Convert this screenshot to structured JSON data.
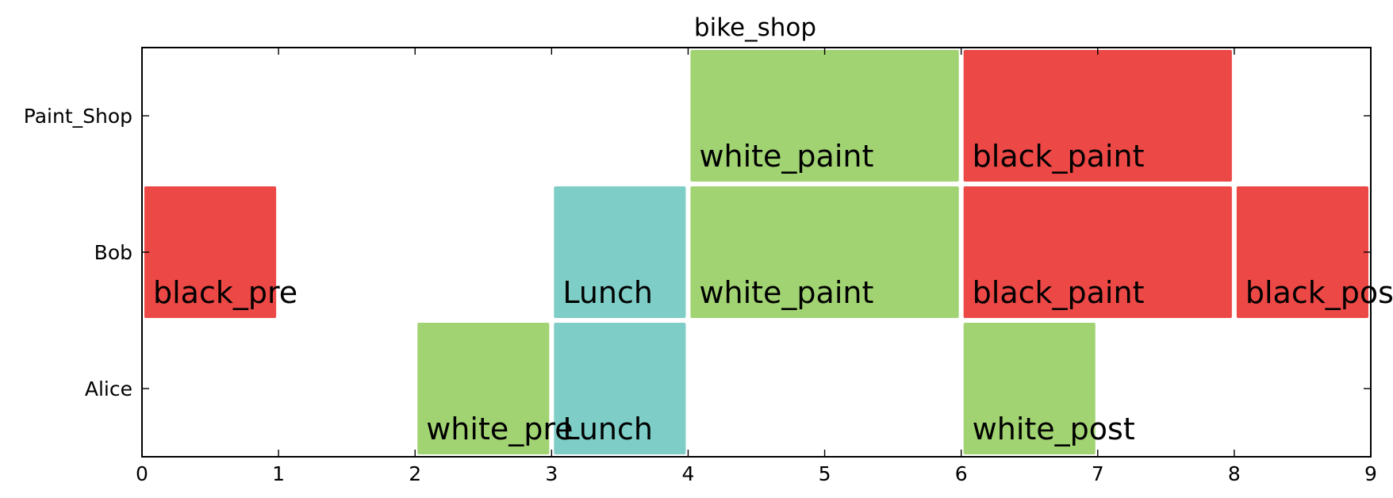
{
  "chart_data": {
    "type": "gantt",
    "title": "bike_shop",
    "xlabel": "",
    "ylabel": "",
    "xlim": [
      0,
      9
    ],
    "x_ticks": [
      "0",
      "1",
      "2",
      "3",
      "4",
      "5",
      "6",
      "7",
      "8",
      "9"
    ],
    "resources": [
      "Paint_Shop",
      "Bob",
      "Alice"
    ],
    "grid": false,
    "tasks": [
      {
        "resource": "Paint_Shop",
        "label": "white_paint",
        "start": 4,
        "end": 6,
        "color": "#a1d372"
      },
      {
        "resource": "Paint_Shop",
        "label": "black_paint",
        "start": 6,
        "end": 8,
        "color": "#eb4846"
      },
      {
        "resource": "Bob",
        "label": "black_pre",
        "start": 0,
        "end": 1,
        "color": "#eb4846"
      },
      {
        "resource": "Bob",
        "label": "Lunch",
        "start": 3,
        "end": 4,
        "color": "#7ecec7"
      },
      {
        "resource": "Bob",
        "label": "white_paint",
        "start": 4,
        "end": 6,
        "color": "#a1d372"
      },
      {
        "resource": "Bob",
        "label": "black_paint",
        "start": 6,
        "end": 8,
        "color": "#eb4846"
      },
      {
        "resource": "Bob",
        "label": "black_post",
        "start": 8,
        "end": 9,
        "color": "#eb4846"
      },
      {
        "resource": "Alice",
        "label": "white_pre",
        "start": 2,
        "end": 3,
        "color": "#a1d372"
      },
      {
        "resource": "Alice",
        "label": "Lunch",
        "start": 3,
        "end": 4,
        "color": "#7ecec7"
      },
      {
        "resource": "Alice",
        "label": "white_post",
        "start": 6,
        "end": 7,
        "color": "#a1d372"
      }
    ]
  }
}
